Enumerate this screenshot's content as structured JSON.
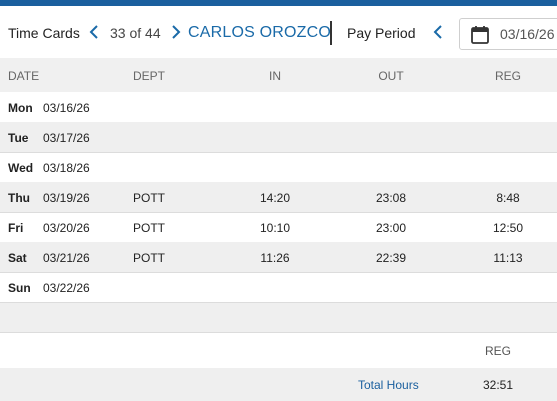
{
  "header": {
    "title": "Time Cards",
    "counter": "33 of 44",
    "employee_name": "CARLOS OROZCO",
    "pay_period_label": "Pay Period",
    "date_value": "03/16/26"
  },
  "columns": {
    "date": "DATE",
    "dept": "DEPT",
    "in": "IN",
    "out": "OUT",
    "reg": "REG"
  },
  "rows": [
    {
      "day": "Mon",
      "date": "03/16/26",
      "dept": "",
      "in": "",
      "out": "",
      "reg": ""
    },
    {
      "day": "Tue",
      "date": "03/17/26",
      "dept": "",
      "in": "",
      "out": "",
      "reg": ""
    },
    {
      "day": "Wed",
      "date": "03/18/26",
      "dept": "",
      "in": "",
      "out": "",
      "reg": ""
    },
    {
      "day": "Thu",
      "date": "03/19/26",
      "dept": "POTT",
      "in": "14:20",
      "out": "23:08",
      "reg": "8:48"
    },
    {
      "day": "Fri",
      "date": "03/20/26",
      "dept": "POTT",
      "in": "10:10",
      "out": "23:00",
      "reg": "12:50"
    },
    {
      "day": "Sat",
      "date": "03/21/26",
      "dept": "POTT",
      "in": "11:26",
      "out": "22:39",
      "reg": "11:13"
    },
    {
      "day": "Sun",
      "date": "03/22/26",
      "dept": "",
      "in": "",
      "out": "",
      "reg": ""
    }
  ],
  "summary": {
    "reg_header": "REG",
    "total_label": "Total Hours",
    "total_reg": "32:51"
  },
  "colors": {
    "accent": "#1a6aa8",
    "topbar": "#1a5f9e",
    "row_alt": "#efefef"
  },
  "icons": {
    "prev": "chevron-left-icon",
    "next": "chevron-right-icon",
    "calendar": "calendar-icon"
  }
}
